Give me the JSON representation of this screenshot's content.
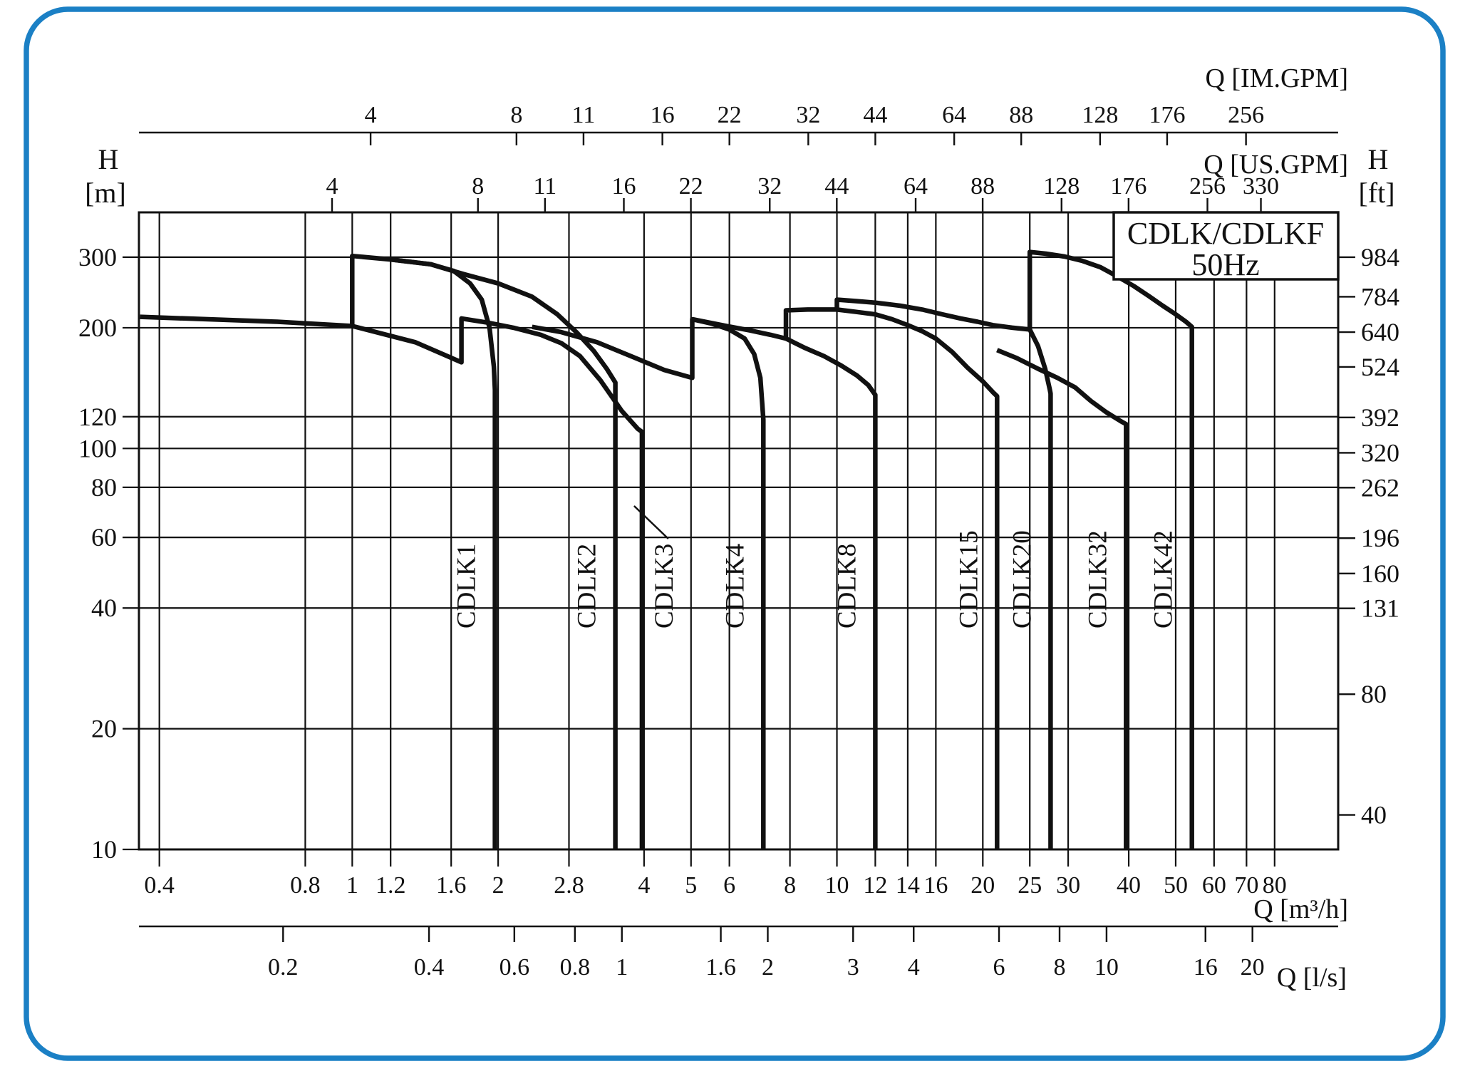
{
  "page": {
    "background": "#ffffff",
    "frame_color": "#1b80c5",
    "line_color": "#111111"
  },
  "chart_data": {
    "type": "line",
    "title": "CDLK/CDLKF",
    "subtitle": "50Hz",
    "legend_position": "none",
    "grid": true,
    "axes": {
      "x_m3h": {
        "title": "Q [m³/h]",
        "scale": "log",
        "min": 0.363,
        "max": 108.2,
        "ticks": [
          0.4,
          0.8,
          1,
          1.2,
          1.6,
          2,
          2.8,
          4,
          5,
          6,
          8,
          10,
          12,
          14,
          16,
          20,
          25,
          30,
          40,
          50,
          60,
          70,
          80
        ],
        "tick_labels": [
          "0.4",
          "0.8",
          "1",
          "1.2",
          "1.6",
          "2",
          "2.8",
          "4",
          "5",
          "6",
          "8",
          "10",
          "12",
          "14",
          "16",
          "20",
          "25",
          "30",
          "40",
          "50",
          "60",
          "70",
          "80"
        ]
      },
      "x_ls": {
        "title": "Q [l/s]",
        "factor_to_m3h": 3.6,
        "ticks": [
          0.2,
          0.4,
          0.6,
          0.8,
          1,
          1.6,
          2,
          3,
          4,
          6,
          8,
          10,
          16,
          20
        ],
        "tick_labels": [
          "0.2",
          "0.4",
          "0.6",
          "0.8",
          "1",
          "1.6",
          "2",
          "3",
          "4",
          "6",
          "8",
          "10",
          "16",
          "20"
        ]
      },
      "x_usgpm": {
        "title": "Q [US.GPM]",
        "factor_to_m3h": 0.22712,
        "ticks": [
          4,
          8,
          11,
          16,
          22,
          32,
          44,
          64,
          88,
          128,
          176,
          256,
          330
        ],
        "tick_labels": [
          "4",
          "8",
          "11",
          "16",
          "22",
          "32",
          "44",
          "64",
          "88",
          "128",
          "176",
          "256",
          "330"
        ]
      },
      "x_imgpm": {
        "title": "Q [IM.GPM]",
        "factor_to_m3h": 0.27277,
        "ticks": [
          4,
          8,
          11,
          16,
          22,
          32,
          44,
          64,
          88,
          128,
          176,
          256
        ],
        "tick_labels": [
          "4",
          "8",
          "11",
          "16",
          "22",
          "32",
          "44",
          "64",
          "88",
          "128",
          "176",
          "256"
        ]
      },
      "y_m": {
        "title": "H",
        "unit": "[m]",
        "scale": "log",
        "min": 10,
        "max": 388,
        "ticks": [
          300,
          200,
          120,
          100,
          80,
          60,
          40,
          20,
          10
        ],
        "tick_labels": [
          "300",
          "200",
          "120",
          "100",
          "80",
          "60",
          "40",
          "20",
          "10"
        ]
      },
      "y_ft": {
        "title": "H",
        "unit": "[ft]",
        "factor_to_m": 0.3048,
        "ticks": [
          984,
          784,
          640,
          524,
          392,
          320,
          262,
          196,
          160,
          131,
          80,
          40
        ],
        "tick_labels": [
          "984",
          "784",
          "640",
          "524",
          "392",
          "320",
          "262",
          "196",
          "160",
          "131",
          "80",
          "40"
        ]
      }
    },
    "series": [
      {
        "name": "CDLK1",
        "points": [
          [
            0.365,
            213
          ],
          [
            0.7,
            207
          ],
          [
            1.0,
            202
          ],
          [
            1.0,
            302
          ],
          [
            1.2,
            296
          ],
          [
            1.45,
            288
          ],
          [
            1.62,
            277
          ],
          [
            1.75,
            258
          ],
          [
            1.85,
            235
          ],
          [
            1.92,
            200
          ],
          [
            1.96,
            160
          ],
          [
            1.97,
            140
          ],
          [
            1.97,
            10
          ]
        ]
      },
      {
        "name": "CDLK2",
        "points": [
          [
            1.2,
            296
          ],
          [
            1.45,
            288
          ],
          [
            1.7,
            272
          ],
          [
            2.0,
            258
          ],
          [
            2.35,
            239
          ],
          [
            2.65,
            216
          ],
          [
            2.9,
            195
          ],
          [
            3.15,
            175
          ],
          [
            3.35,
            158
          ],
          [
            3.49,
            146
          ],
          [
            3.49,
            10
          ]
        ]
      },
      {
        "name": "CDLK3",
        "points": [
          [
            1.0,
            202
          ],
          [
            1.35,
            184
          ],
          [
            1.68,
            164
          ],
          [
            1.68,
            211
          ],
          [
            1.9,
            206
          ],
          [
            2.15,
            200
          ],
          [
            2.45,
            192
          ],
          [
            2.7,
            183
          ],
          [
            2.95,
            170
          ],
          [
            3.25,
            148
          ],
          [
            3.6,
            124
          ],
          [
            3.88,
            112
          ],
          [
            3.96,
            110
          ],
          [
            3.96,
            10
          ]
        ],
        "label_right_of_drop": true,
        "pointer": true
      },
      {
        "name": "CDLK4",
        "points": [
          [
            2.35,
            201
          ],
          [
            2.7,
            195
          ],
          [
            3.2,
            184
          ],
          [
            3.8,
            169
          ],
          [
            4.4,
            157
          ],
          [
            5.03,
            150
          ],
          [
            5.03,
            210
          ],
          [
            5.5,
            205
          ],
          [
            6.0,
            198
          ],
          [
            6.45,
            188
          ],
          [
            6.75,
            172
          ],
          [
            6.95,
            150
          ],
          [
            7.05,
            118
          ],
          [
            7.05,
            10
          ]
        ]
      },
      {
        "name": "CDLK8",
        "points": [
          [
            5.03,
            210
          ],
          [
            5.8,
            203
          ],
          [
            6.6,
            197
          ],
          [
            7.3,
            192
          ],
          [
            7.85,
            188
          ],
          [
            8.6,
            178
          ],
          [
            9.4,
            170
          ],
          [
            10.2,
            161
          ],
          [
            11.0,
            152
          ],
          [
            11.6,
            144
          ],
          [
            12.0,
            136
          ],
          [
            12.0,
            10
          ]
        ]
      },
      {
        "name": "CDLK15",
        "points": [
          [
            7.85,
            188
          ],
          [
            7.85,
            221
          ],
          [
            8.7,
            222
          ],
          [
            10.0,
            222
          ],
          [
            11.0,
            219
          ],
          [
            12.0,
            216
          ],
          [
            13.0,
            210
          ],
          [
            14.0,
            203
          ],
          [
            15.0,
            196
          ],
          [
            16.0,
            188
          ],
          [
            17.3,
            174
          ],
          [
            18.6,
            159
          ],
          [
            20.0,
            147
          ],
          [
            21.0,
            138
          ],
          [
            21.4,
            135
          ],
          [
            21.4,
            10
          ]
        ]
      },
      {
        "name": "CDLK20",
        "points": [
          [
            10.0,
            222
          ],
          [
            10.0,
            235
          ],
          [
            11.0,
            233
          ],
          [
            12.0,
            231
          ],
          [
            13.5,
            227
          ],
          [
            15.0,
            222
          ],
          [
            16.5,
            216
          ],
          [
            18.0,
            211
          ],
          [
            19.5,
            207
          ],
          [
            21.0,
            203
          ],
          [
            23.0,
            200
          ],
          [
            25.0,
            198
          ],
          [
            26.0,
            180
          ],
          [
            26.9,
            158
          ],
          [
            27.5,
            140
          ],
          [
            27.6,
            137
          ],
          [
            27.6,
            10
          ]
        ]
      },
      {
        "name": "CDLK32",
        "points": [
          [
            21.4,
            176
          ],
          [
            23.5,
            168
          ],
          [
            26.0,
            158
          ],
          [
            28.5,
            150
          ],
          [
            31.0,
            142
          ],
          [
            33.5,
            131
          ],
          [
            36.0,
            123
          ],
          [
            38.5,
            117
          ],
          [
            39.5,
            115
          ],
          [
            39.5,
            10
          ]
        ]
      },
      {
        "name": "CDLK42",
        "points": [
          [
            25.0,
            198
          ],
          [
            25.0,
            309
          ],
          [
            27.0,
            306
          ],
          [
            29.5,
            301
          ],
          [
            32.0,
            294
          ],
          [
            35.0,
            283
          ],
          [
            38.0,
            268
          ],
          [
            41.0,
            254
          ],
          [
            44.0,
            240
          ],
          [
            47.0,
            227
          ],
          [
            50.0,
            216
          ],
          [
            52.5,
            207
          ],
          [
            54.0,
            201
          ],
          [
            54.0,
            10
          ]
        ]
      }
    ]
  }
}
